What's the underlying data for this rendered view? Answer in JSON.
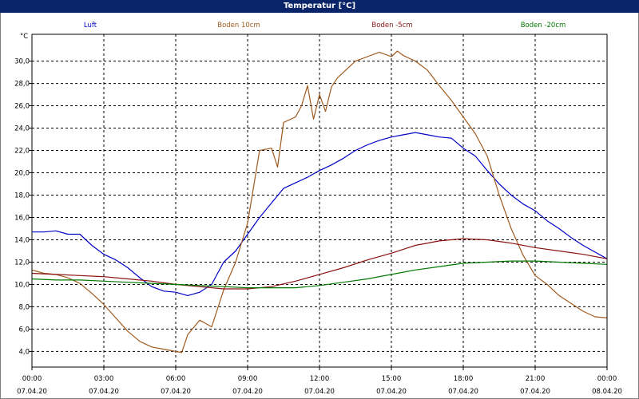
{
  "window": {
    "title": "Temperatur [°C]"
  },
  "chart_data": {
    "type": "line",
    "title": "Temperatur [°C]",
    "ylabel": "°C",
    "ylim": [
      2.6,
      32.4
    ],
    "y_ticks": [
      "4,0",
      "6,0",
      "8,0",
      "10,0",
      "12,0",
      "14,0",
      "16,0",
      "18,0",
      "20,0",
      "22,0",
      "24,0",
      "26,0",
      "28,0",
      "30,0"
    ],
    "y_tick_values": [
      4,
      6,
      8,
      10,
      12,
      14,
      16,
      18,
      20,
      22,
      24,
      26,
      28,
      30
    ],
    "xlim": [
      0,
      24
    ],
    "x_ticks": [
      {
        "hour": 0,
        "time": "00:00",
        "date": "07.04.20"
      },
      {
        "hour": 3,
        "time": "03:00",
        "date": "07.04.20"
      },
      {
        "hour": 6,
        "time": "06:00",
        "date": "07.04.20"
      },
      {
        "hour": 9,
        "time": "09:00",
        "date": "07.04.20"
      },
      {
        "hour": 12,
        "time": "12:00",
        "date": "07.04.20"
      },
      {
        "hour": 15,
        "time": "15:00",
        "date": "07.04.20"
      },
      {
        "hour": 18,
        "time": "18:00",
        "date": "07.04.20"
      },
      {
        "hour": 21,
        "time": "21:00",
        "date": "07.04.20"
      },
      {
        "hour": 24,
        "time": "00:00",
        "date": "08.04.20"
      }
    ],
    "grid": true,
    "legend_position": "top",
    "series": [
      {
        "name": "Luft",
        "color": "#0000c8",
        "x": [
          0,
          0.5,
          1,
          1.5,
          2,
          2.5,
          3,
          3.5,
          4,
          4.5,
          5,
          5.5,
          6,
          6.5,
          7,
          7.5,
          8,
          8.5,
          9,
          9.5,
          10,
          10.5,
          11,
          11.5,
          12,
          12.5,
          13,
          13.5,
          14,
          14.5,
          15,
          15.5,
          16,
          16.5,
          17,
          17.5,
          18,
          18.5,
          19,
          19.5,
          20,
          20.5,
          21,
          21.5,
          22,
          22.5,
          23,
          23.5,
          24
        ],
        "y": [
          14.7,
          14.7,
          14.8,
          14.5,
          14.5,
          13.5,
          12.7,
          12.2,
          11.5,
          10.6,
          9.8,
          9.4,
          9.3,
          9.0,
          9.3,
          10.0,
          12.0,
          13.0,
          14.5,
          16.0,
          17.3,
          18.6,
          19.1,
          19.6,
          20.2,
          20.7,
          21.3,
          22.0,
          22.5,
          22.9,
          23.2,
          23.4,
          23.6,
          23.4,
          23.2,
          23.1,
          22.2,
          21.5,
          20.2,
          19.0,
          18.0,
          17.2,
          16.6,
          15.7,
          15.0,
          14.2,
          13.5,
          12.9,
          12.3
        ]
      },
      {
        "name": "Boden 10cm",
        "color": "#a05a1e",
        "x": [
          0,
          0.5,
          1,
          1.5,
          2,
          2.5,
          3,
          3.5,
          4,
          4.5,
          5,
          5.5,
          6,
          6.25,
          6.5,
          7,
          7.5,
          8,
          8.5,
          9,
          9.5,
          10,
          10.25,
          10.5,
          11,
          11.25,
          11.5,
          11.75,
          12,
          12.25,
          12.5,
          12.75,
          13,
          13.5,
          14,
          14.5,
          15,
          15.25,
          15.5,
          16,
          16.5,
          17,
          17.5,
          18,
          18.5,
          19,
          19.5,
          20,
          20.5,
          21,
          21.5,
          22,
          22.5,
          23,
          23.5,
          24
        ],
        "y": [
          11.3,
          11.0,
          10.9,
          10.6,
          10.1,
          9.2,
          8.2,
          7.0,
          5.8,
          4.9,
          4.4,
          4.2,
          4.0,
          3.9,
          5.5,
          6.8,
          6.2,
          9.5,
          12.0,
          15.5,
          22.0,
          22.2,
          20.5,
          24.5,
          25.0,
          26.0,
          27.8,
          24.8,
          27.0,
          25.5,
          27.7,
          28.5,
          29.0,
          30.0,
          30.4,
          30.8,
          30.4,
          30.9,
          30.5,
          30.0,
          29.2,
          27.8,
          26.5,
          25.0,
          23.5,
          21.5,
          18.0,
          15.0,
          12.6,
          10.8,
          10.0,
          9.0,
          8.3,
          7.6,
          7.1,
          7.0
        ]
      },
      {
        "name": "Boden -5cm",
        "color": "#8b1010",
        "x": [
          0,
          1,
          2,
          3,
          4,
          5,
          6,
          7,
          8,
          9,
          10,
          11,
          12,
          13,
          14,
          15,
          16,
          17,
          18,
          19,
          20,
          21,
          22,
          23,
          24
        ],
        "y": [
          11.0,
          10.9,
          10.8,
          10.7,
          10.5,
          10.3,
          10.0,
          9.8,
          9.6,
          9.6,
          9.8,
          10.3,
          10.9,
          11.5,
          12.2,
          12.8,
          13.5,
          13.9,
          14.1,
          14.0,
          13.7,
          13.3,
          13.0,
          12.7,
          12.3
        ]
      },
      {
        "name": "Boden -20cm",
        "color": "#007800",
        "x": [
          0,
          1,
          2,
          3,
          4,
          5,
          6,
          7,
          8,
          9,
          10,
          11,
          12,
          13,
          14,
          15,
          16,
          17,
          18,
          19,
          20,
          21,
          22,
          23,
          24
        ],
        "y": [
          10.5,
          10.4,
          10.4,
          10.3,
          10.2,
          10.1,
          10.0,
          9.9,
          9.8,
          9.7,
          9.7,
          9.7,
          9.9,
          10.2,
          10.5,
          10.9,
          11.3,
          11.6,
          11.9,
          12.0,
          12.1,
          12.1,
          12.0,
          11.9,
          11.8
        ]
      }
    ]
  }
}
